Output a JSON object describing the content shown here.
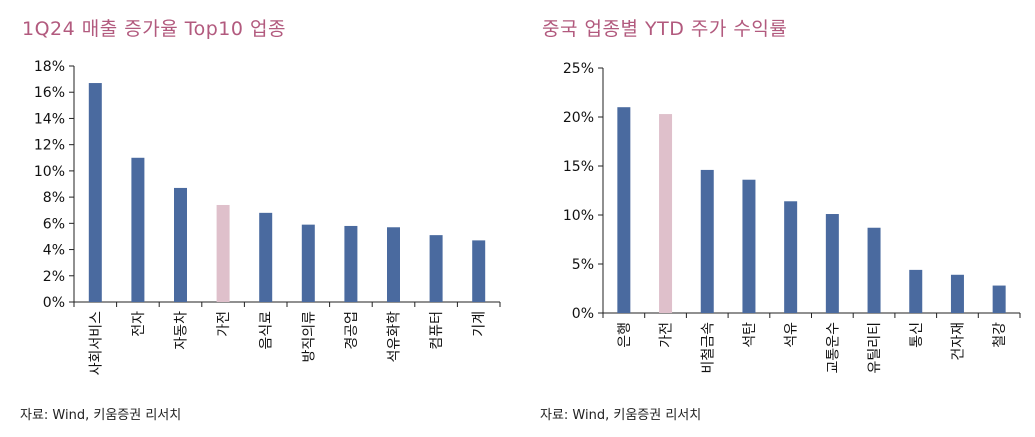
{
  "colors": {
    "title": "#b25a7e",
    "bar": "#4a6a9f",
    "highlight": "#dfc0cb",
    "axis": "#222222"
  },
  "chart_data": [
    {
      "type": "bar",
      "title": "1Q24 매출 증가율 Top10 업종",
      "source": "자료: Wind, 키움증권 리서치",
      "categories": [
        "사회서비스",
        "전자",
        "자동차",
        "가전",
        "음식료",
        "방직의류",
        "경공업",
        "석유화학",
        "컴퓨터",
        "기계"
      ],
      "values": [
        16.7,
        11.0,
        8.7,
        7.4,
        6.8,
        5.9,
        5.8,
        5.7,
        5.1,
        4.7
      ],
      "highlight_index": 3,
      "ylim": [
        0,
        18
      ],
      "y_ticks": [
        "0%",
        "2%",
        "4%",
        "6%",
        "8%",
        "10%",
        "12%",
        "14%",
        "16%",
        "18%"
      ],
      "xlabel": "",
      "ylabel": "",
      "grid": false
    },
    {
      "type": "bar",
      "title": "중국 업종별 YTD 주가 수익률",
      "source": "자료: Wind, 키움증권 리서치",
      "categories": [
        "은행",
        "가전",
        "비철금속",
        "석탄",
        "석유",
        "교통운수",
        "유틸리티",
        "통신",
        "건자재",
        "철강"
      ],
      "values": [
        21.0,
        20.3,
        14.6,
        13.6,
        11.4,
        10.1,
        8.7,
        4.4,
        3.9,
        2.8
      ],
      "highlight_index": 1,
      "ylim": [
        0,
        25
      ],
      "y_ticks": [
        "0%",
        "5%",
        "10%",
        "15%",
        "20%",
        "25%"
      ],
      "xlabel": "",
      "ylabel": "",
      "grid": false
    }
  ]
}
